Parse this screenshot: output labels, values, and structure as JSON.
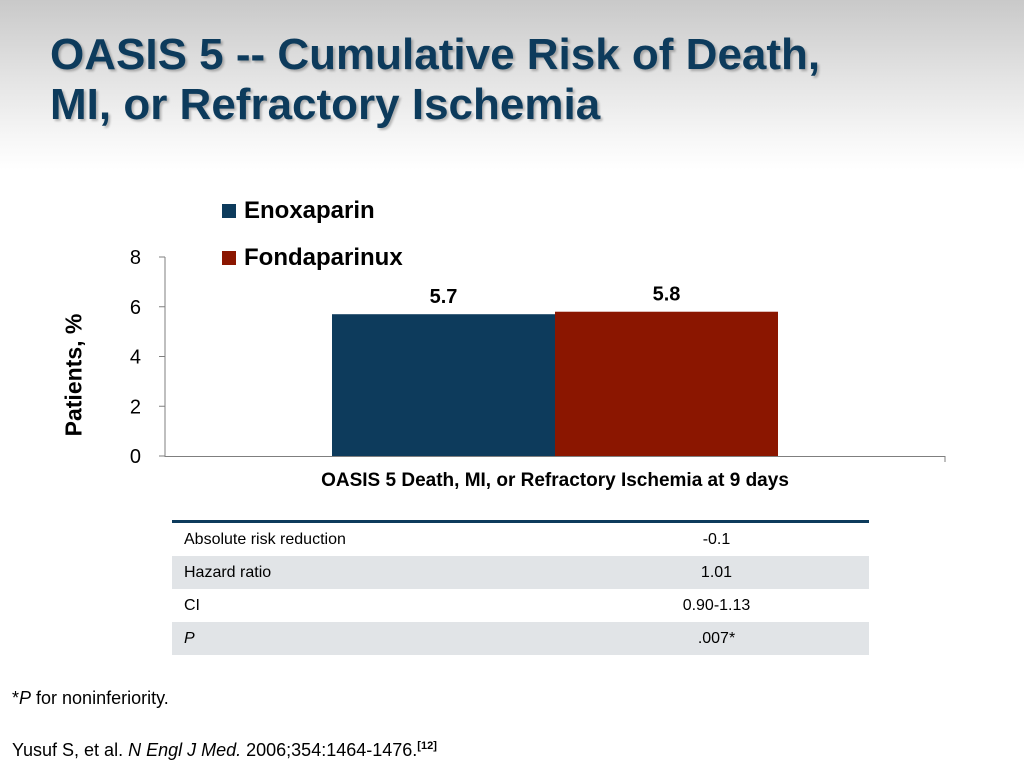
{
  "title": {
    "line1": "OASIS 5 -- Cumulative Risk of Death,",
    "line2": "MI, or Refractory Ischemia"
  },
  "chart_data": {
    "type": "bar",
    "categories": [
      "OASIS 5 Death, MI, or Refractory Ischemia at 9 days"
    ],
    "series": [
      {
        "name": "Enoxaparin",
        "values": [
          5.7
        ],
        "color": "#0d3b5c",
        "label": "5.7"
      },
      {
        "name": "Fondaparinux",
        "values": [
          5.8
        ],
        "color": "#8b1600",
        "label": "5.8"
      }
    ],
    "xlabel": "OASIS 5 Death, MI, or Refractory Ischemia at 9 days",
    "ylabel": "Patients, %",
    "ylim": [
      0,
      8
    ],
    "yticks": [
      "0",
      "2",
      "4",
      "6",
      "8"
    ],
    "grid": false,
    "legend": "top-left"
  },
  "stats_table": {
    "rows": [
      {
        "label": "Absolute risk reduction",
        "value": "-0.1"
      },
      {
        "label": "Hazard ratio",
        "value": "1.01"
      },
      {
        "label": "CI",
        "value": "0.90-1.13"
      },
      {
        "label": "P",
        "value": ".007*"
      }
    ]
  },
  "footnote": {
    "p_symbol": "P",
    "text": " for noninferiority."
  },
  "citation": {
    "authors": "Yusuf S, et al. ",
    "journal": "N Engl J Med.",
    "details": " 2006;354:1464-1476.",
    "ref": "[12]"
  }
}
